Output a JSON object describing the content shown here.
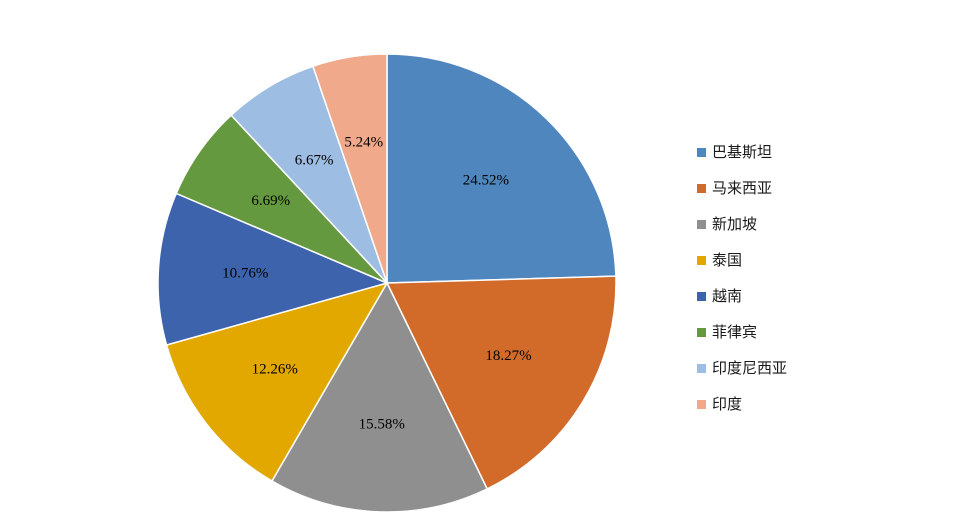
{
  "chart_data": {
    "type": "pie",
    "title": "",
    "categories": [
      "巴基斯坦",
      "马来西亚",
      "新加坡",
      "泰国",
      "越南",
      "菲律宾",
      "印度尼西亚",
      "印度"
    ],
    "values": [
      24.52,
      18.27,
      15.58,
      12.26,
      10.76,
      6.69,
      6.67,
      5.24
    ],
    "labels": [
      "24.52%",
      "18.27%",
      "15.58%",
      "12.26%",
      "10.76%",
      "6.69%",
      "6.67%",
      "5.24%"
    ],
    "colors": [
      "#4f86bd",
      "#d26b2a",
      "#8f8f8f",
      "#e2a800",
      "#3d63ad",
      "#64993f",
      "#9dbde3",
      "#f0a98a"
    ],
    "start_angle": "12 o'clock, clockwise",
    "legend_position": "right"
  }
}
